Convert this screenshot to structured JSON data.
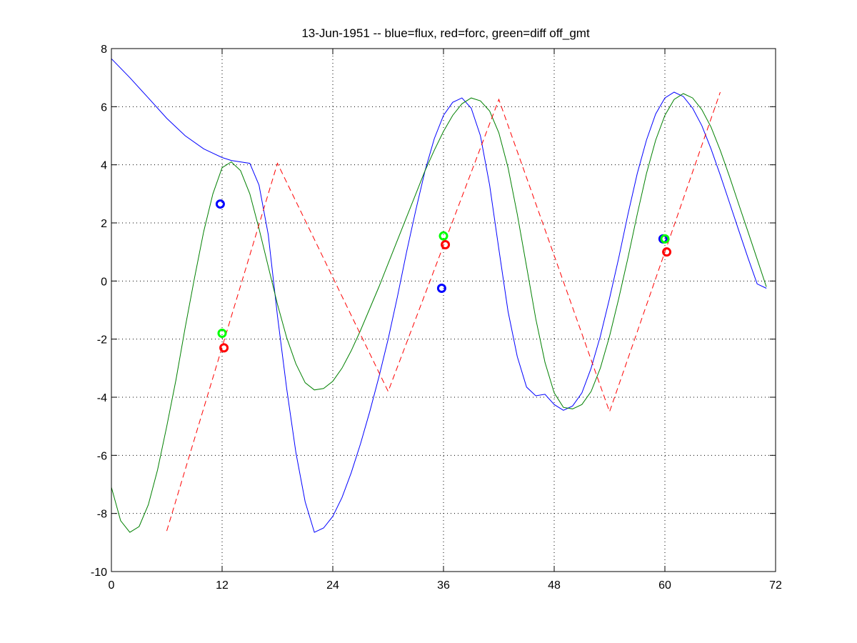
{
  "chart_data": {
    "type": "line",
    "title": "13-Jun-1951 -- blue=flux, red=forc, green=diff off_gmt",
    "xlim": [
      0,
      72
    ],
    "ylim": [
      -10,
      8
    ],
    "xticks": [
      0,
      12,
      24,
      36,
      48,
      60,
      72
    ],
    "yticks": [
      -10,
      -8,
      -6,
      -4,
      -2,
      0,
      2,
      4,
      6,
      8
    ],
    "grid": true,
    "series": [
      {
        "color": "#0000ff",
        "style": "solid",
        "x": [
          0,
          2,
          4,
          6,
          8,
          10,
          11,
          12,
          13,
          14,
          15,
          16,
          17,
          18,
          19,
          20,
          21,
          22,
          23,
          24,
          25,
          26,
          27,
          28,
          29,
          30,
          31,
          32,
          33,
          34,
          35,
          36,
          37,
          38,
          39,
          40,
          41,
          42,
          43,
          44,
          45,
          46,
          47,
          48,
          49,
          50,
          51,
          52,
          53,
          54,
          55,
          56,
          57,
          58,
          59,
          60,
          61,
          62,
          63,
          64,
          65,
          66,
          67,
          68,
          69,
          70,
          71
        ],
        "y": [
          7.65,
          7.0,
          6.3,
          5.6,
          5.0,
          4.55,
          4.4,
          4.25,
          4.15,
          4.1,
          4.05,
          3.3,
          1.6,
          -1.2,
          -3.7,
          -5.9,
          -7.6,
          -8.65,
          -8.5,
          -8.1,
          -7.45,
          -6.6,
          -5.6,
          -4.5,
          -3.3,
          -2.0,
          -0.55,
          1.0,
          2.45,
          3.8,
          4.9,
          5.7,
          6.15,
          6.3,
          5.95,
          5.0,
          3.3,
          1.1,
          -1.05,
          -2.6,
          -3.65,
          -3.95,
          -3.9,
          -4.25,
          -4.45,
          -4.3,
          -3.85,
          -3.0,
          -1.9,
          -0.6,
          0.8,
          2.3,
          3.7,
          4.85,
          5.75,
          6.3,
          6.5,
          6.35,
          5.95,
          5.35,
          4.55,
          3.65,
          2.7,
          1.75,
          0.8,
          -0.1,
          -0.25
        ]
      },
      {
        "color": "#008000",
        "style": "solid",
        "x": [
          0,
          1,
          2,
          3,
          4,
          5,
          6,
          7,
          8,
          9,
          10,
          11,
          12,
          13,
          14,
          15,
          16,
          17,
          18,
          19,
          20,
          21,
          22,
          23,
          24,
          25,
          26,
          27,
          28,
          29,
          30,
          31,
          32,
          33,
          34,
          35,
          36,
          37,
          38,
          39,
          40,
          41,
          42,
          43,
          44,
          45,
          46,
          47,
          48,
          49,
          50,
          51,
          52,
          53,
          54,
          55,
          56,
          57,
          58,
          59,
          60,
          61,
          62,
          63,
          64,
          65,
          66,
          67,
          68,
          69,
          70,
          71
        ],
        "y": [
          -7.1,
          -8.25,
          -8.65,
          -8.45,
          -7.7,
          -6.5,
          -5.0,
          -3.4,
          -1.6,
          0.1,
          1.7,
          3.0,
          3.9,
          4.1,
          3.8,
          3.0,
          1.8,
          0.5,
          -0.8,
          -1.95,
          -2.85,
          -3.5,
          -3.75,
          -3.7,
          -3.45,
          -3.0,
          -2.4,
          -1.7,
          -0.95,
          -0.2,
          0.6,
          1.4,
          2.2,
          3.0,
          3.8,
          4.5,
          5.15,
          5.7,
          6.1,
          6.3,
          6.2,
          5.85,
          5.1,
          3.9,
          2.3,
          0.5,
          -1.3,
          -2.8,
          -3.85,
          -4.35,
          -4.4,
          -4.25,
          -3.8,
          -3.0,
          -1.9,
          -0.6,
          0.8,
          2.3,
          3.7,
          4.85,
          5.7,
          6.25,
          6.45,
          6.3,
          5.9,
          5.3,
          4.5,
          3.6,
          2.65,
          1.7,
          0.75,
          -0.2
        ]
      },
      {
        "color": "#ff0000",
        "style": "dashed",
        "x": [
          6,
          18,
          30,
          42,
          54,
          66
        ],
        "y": [
          -8.6,
          4.05,
          -3.8,
          6.25,
          -4.5,
          6.5
        ]
      }
    ],
    "markers": [
      {
        "color": "#0000ff",
        "x": 11.8,
        "y": 2.65
      },
      {
        "color": "#00ff00",
        "x": 12.0,
        "y": -1.8
      },
      {
        "color": "#ff0000",
        "x": 12.2,
        "y": -2.3
      },
      {
        "color": "#0000ff",
        "x": 35.8,
        "y": -0.25
      },
      {
        "color": "#00ff00",
        "x": 36.0,
        "y": 1.55
      },
      {
        "color": "#ff0000",
        "x": 36.2,
        "y": 1.25
      },
      {
        "color": "#0000ff",
        "x": 59.8,
        "y": 1.45
      },
      {
        "color": "#00ff00",
        "x": 60.0,
        "y": 1.45
      },
      {
        "color": "#ff0000",
        "x": 60.2,
        "y": 1.0
      }
    ]
  }
}
